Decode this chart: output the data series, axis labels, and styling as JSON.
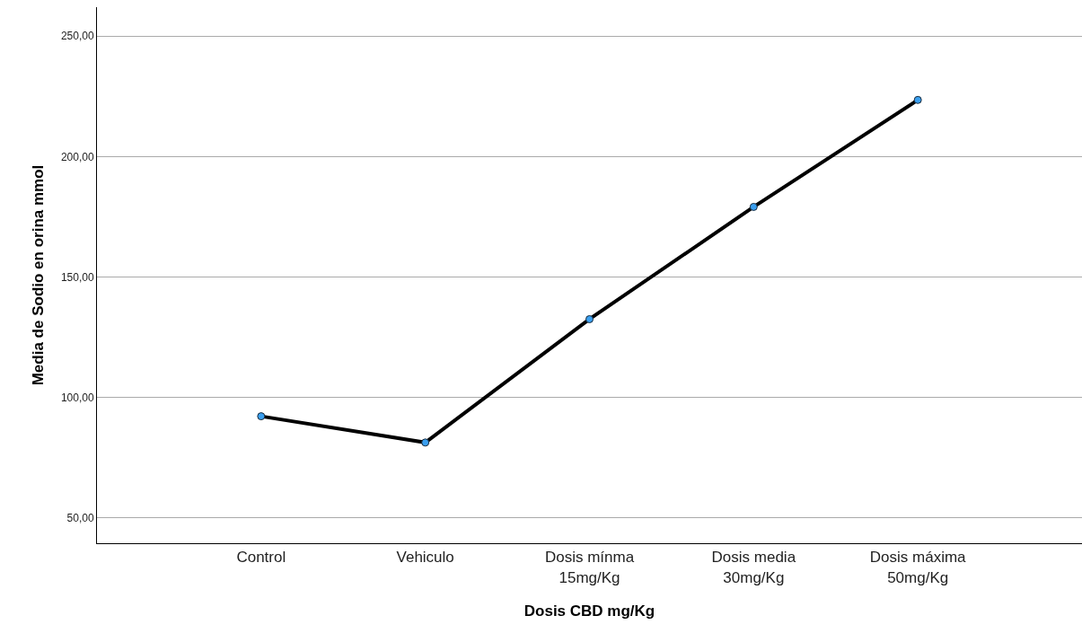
{
  "chart_data": {
    "type": "line",
    "xlabel": "Dosis CBD mg/Kg",
    "ylabel": "Media de Sodio en orina mmol",
    "categories": [
      "Control",
      "Vehiculo",
      "Dosis mínma\n15mg/Kg",
      "Dosis media\n30mg/Kg",
      "Dosis máxima\n50mg/Kg"
    ],
    "series": [
      {
        "color": "#000000",
        "values": [
          92.2,
          81.3,
          132.5,
          179.1,
          223.5
        ]
      }
    ],
    "ylim": [
      39.5,
      262
    ],
    "yticks": [
      {
        "value": 50,
        "label": "50,00"
      },
      {
        "value": 100,
        "label": "100,00"
      },
      {
        "value": 150,
        "label": "150,00"
      },
      {
        "value": 200,
        "label": "200,00"
      },
      {
        "value": 250,
        "label": "250,00"
      }
    ],
    "grid": "y",
    "marker": "circle",
    "line_style": "solid"
  }
}
